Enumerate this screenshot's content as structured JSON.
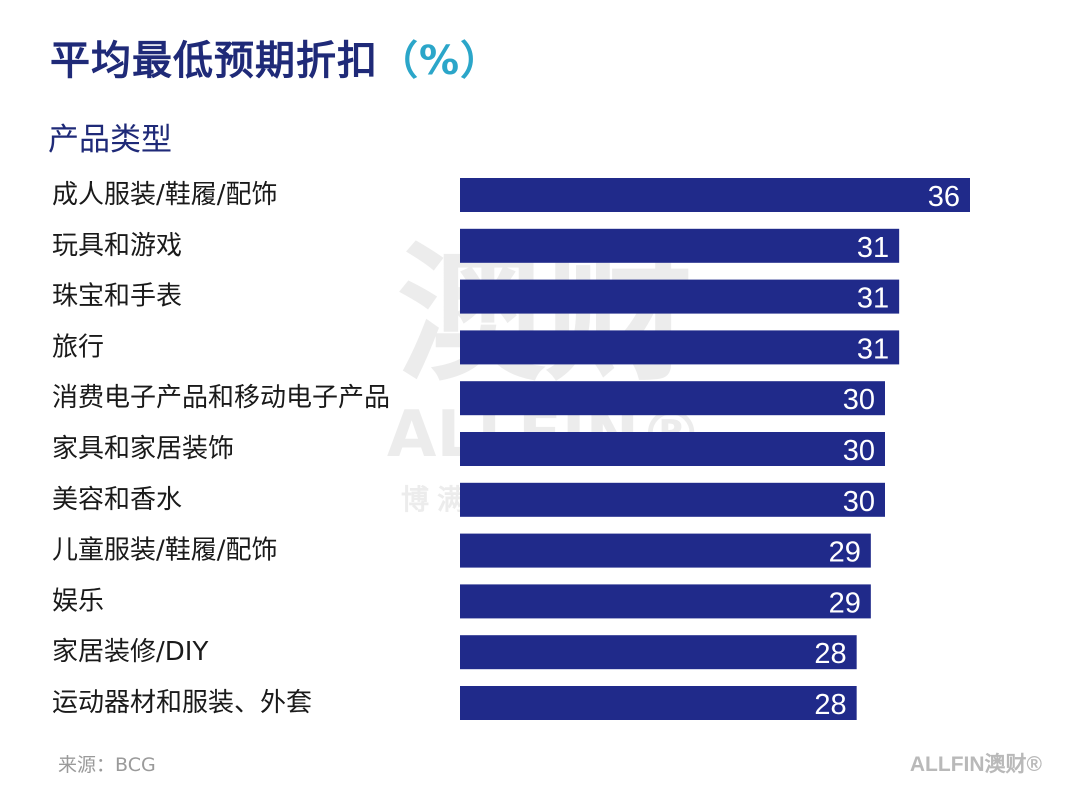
{
  "header": {
    "title": "平均最低预期折扣",
    "title_unit": "（%）",
    "subtitle": "产品类型"
  },
  "footer": {
    "source": "来源：BCG",
    "brand": "ALLFIN澳财®"
  },
  "watermark": {
    "big": "澳财",
    "en": "ALLFIN®",
    "sub": "博满信用担保企业"
  },
  "colors": {
    "bar": "#202a8a",
    "title": "#1f2a78",
    "accent": "#2ba6c9"
  },
  "chart_data": {
    "type": "bar",
    "orientation": "horizontal",
    "title": "平均最低预期折扣（%）",
    "ylabel": "产品类型",
    "xlim": [
      0,
      36
    ],
    "grid": false,
    "legend": "none",
    "categories": [
      "成人服装/鞋履/配饰",
      "玩具和游戏",
      "珠宝和手表",
      "旅行",
      "消费电子产品和移动电子产品",
      "家具和家居装饰",
      "美容和香水",
      "儿童服装/鞋履/配饰",
      "娱乐",
      "家居装修/DIY",
      "运动器材和服装、外套"
    ],
    "values": [
      36,
      31,
      31,
      31,
      30,
      30,
      30,
      29,
      29,
      28,
      28
    ]
  }
}
